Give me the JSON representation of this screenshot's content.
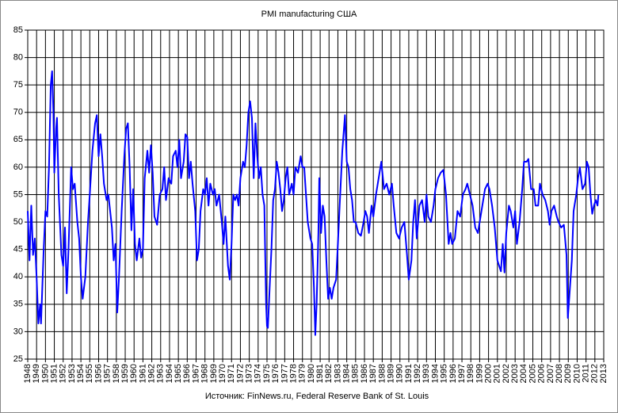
{
  "chart_data": {
    "type": "line",
    "title": "PMI manufacturing  США",
    "source": "Источник:  FinNews.ru,  Federal  Reserve  Bank of St. Louis",
    "color": "#0000ff",
    "grid": true,
    "xlim": [
      1948,
      2013
    ],
    "xticks": [
      1948,
      1949,
      1950,
      1951,
      1952,
      1953,
      1954,
      1955,
      1956,
      1957,
      1958,
      1959,
      1960,
      1961,
      1962,
      1963,
      1964,
      1965,
      1966,
      1967,
      1968,
      1969,
      1970,
      1971,
      1972,
      1973,
      1974,
      1975,
      1976,
      1977,
      1978,
      1979,
      1980,
      1981,
      1982,
      1983,
      1984,
      1985,
      1986,
      1987,
      1988,
      1989,
      1990,
      1991,
      1992,
      1993,
      1994,
      1995,
      1996,
      1997,
      1998,
      1999,
      2000,
      2001,
      2002,
      2003,
      2004,
      2005,
      2006,
      2007,
      2008,
      2009,
      2010,
      2011,
      2012,
      2013
    ],
    "ylim": [
      25,
      85
    ],
    "yticks": [
      25,
      30,
      35,
      40,
      45,
      50,
      55,
      60,
      65,
      70,
      75,
      80,
      85
    ],
    "x": [
      1948.0,
      1948.2,
      1948.4,
      1948.6,
      1948.8,
      1949.0,
      1949.2,
      1949.4,
      1949.5,
      1949.8,
      1950.0,
      1950.2,
      1950.4,
      1950.6,
      1950.75,
      1950.9,
      1951.0,
      1951.2,
      1951.3,
      1951.5,
      1951.8,
      1952.0,
      1952.2,
      1952.4,
      1952.6,
      1952.9,
      1953.1,
      1953.3,
      1953.6,
      1953.8,
      1954.0,
      1954.2,
      1954.5,
      1954.8,
      1955.0,
      1955.3,
      1955.6,
      1955.8,
      1956.0,
      1956.2,
      1956.4,
      1956.6,
      1956.9,
      1957.1,
      1957.3,
      1957.5,
      1957.7,
      1957.9,
      1958.1,
      1958.3,
      1958.6,
      1958.9,
      1959.1,
      1959.3,
      1959.5,
      1959.7,
      1959.9,
      1960.1,
      1960.3,
      1960.6,
      1960.8,
      1961.0,
      1961.2,
      1961.5,
      1961.7,
      1961.9,
      1962.1,
      1962.3,
      1962.6,
      1962.9,
      1963.2,
      1963.4,
      1963.6,
      1963.9,
      1964.2,
      1964.4,
      1964.7,
      1964.9,
      1965.1,
      1965.3,
      1965.6,
      1965.8,
      1966.0,
      1966.2,
      1966.4,
      1966.6,
      1966.9,
      1967.1,
      1967.3,
      1967.5,
      1967.8,
      1968.0,
      1968.2,
      1968.4,
      1968.6,
      1968.9,
      1969.1,
      1969.3,
      1969.6,
      1969.9,
      1970.1,
      1970.3,
      1970.6,
      1970.8,
      1971.0,
      1971.2,
      1971.4,
      1971.6,
      1971.8,
      1972.0,
      1972.3,
      1972.5,
      1972.7,
      1972.9,
      1973.1,
      1973.3,
      1973.5,
      1973.7,
      1973.9,
      1974.1,
      1974.3,
      1974.5,
      1974.7,
      1974.9,
      1975.0,
      1975.1,
      1975.3,
      1975.5,
      1975.7,
      1975.9,
      1976.1,
      1976.3,
      1976.5,
      1976.7,
      1976.9,
      1977.1,
      1977.3,
      1977.5,
      1977.8,
      1978.0,
      1978.2,
      1978.5,
      1978.8,
      1979.0,
      1979.2,
      1979.4,
      1979.6,
      1979.9,
      1980.1,
      1980.3,
      1980.45,
      1980.6,
      1980.8,
      1980.9,
      1981.1,
      1981.3,
      1981.5,
      1981.7,
      1981.9,
      1982.1,
      1982.3,
      1982.5,
      1982.8,
      1983.0,
      1983.2,
      1983.5,
      1983.8,
      1984.0,
      1984.2,
      1984.4,
      1984.6,
      1984.8,
      1985.0,
      1985.3,
      1985.6,
      1985.9,
      1986.1,
      1986.3,
      1986.5,
      1986.8,
      1987.0,
      1987.3,
      1987.6,
      1987.9,
      1988.2,
      1988.5,
      1988.8,
      1989.1,
      1989.3,
      1989.6,
      1989.9,
      1990.2,
      1990.5,
      1990.8,
      1991.0,
      1991.3,
      1991.5,
      1991.7,
      1991.9,
      1992.2,
      1992.5,
      1992.8,
      1993.0,
      1993.2,
      1993.5,
      1993.8,
      1994.0,
      1994.3,
      1994.6,
      1994.9,
      1995.2,
      1995.5,
      1995.7,
      1995.9,
      1996.2,
      1996.5,
      1996.8,
      1997.1,
      1997.4,
      1997.6,
      1997.9,
      1998.2,
      1998.5,
      1998.8,
      1999.0,
      1999.3,
      1999.6,
      1999.9,
      2000.1,
      2000.4,
      2000.7,
      2001.0,
      2001.2,
      2001.4,
      2001.6,
      2001.8,
      2002.0,
      2002.3,
      2002.5,
      2002.8,
      2003.0,
      2003.2,
      2003.5,
      2003.8,
      2004.0,
      2004.3,
      2004.5,
      2004.8,
      2005.1,
      2005.3,
      2005.6,
      2005.8,
      2006.1,
      2006.4,
      2006.7,
      2006.9,
      2007.1,
      2007.4,
      2007.7,
      2007.9,
      2008.2,
      2008.5,
      2008.8,
      2008.95,
      2009.1,
      2009.4,
      2009.6,
      2009.9,
      2010.1,
      2010.3,
      2010.6,
      2010.9,
      2011.1,
      2011.3,
      2011.5,
      2011.7,
      2011.9,
      2012.1,
      2012.3,
      2012.4
    ],
    "values": [
      52,
      43,
      53,
      44,
      47,
      40,
      31.5,
      35,
      31.5,
      45,
      52,
      51,
      60,
      75,
      77.5,
      70,
      59,
      67,
      69,
      55,
      44,
      42,
      49,
      37,
      45,
      60,
      56,
      57,
      50,
      47,
      40,
      36,
      40,
      50,
      55,
      63,
      68,
      69.5,
      62,
      66,
      62,
      57,
      54,
      55,
      52,
      49,
      43,
      46,
      33.5,
      40,
      52,
      62,
      67,
      68,
      60,
      48.5,
      56,
      46,
      43,
      47,
      43.5,
      45,
      58,
      63,
      59,
      64,
      59,
      51,
      49.5,
      55,
      56,
      60,
      54,
      58,
      57,
      62,
      63,
      60,
      65,
      58,
      61,
      66,
      65.5,
      58,
      61,
      57,
      52,
      43,
      45,
      52,
      56,
      55,
      58,
      53,
      57,
      55,
      56,
      53,
      55,
      50,
      46,
      51,
      42,
      39.5,
      46,
      55,
      54,
      55,
      53,
      58,
      61,
      60,
      64,
      70,
      72,
      69,
      58,
      68,
      62,
      58,
      60,
      55,
      53,
      35,
      31,
      30.7,
      38,
      45,
      54,
      56,
      61,
      59,
      56,
      52,
      54,
      58,
      60,
      55,
      57,
      55,
      60,
      59,
      62,
      60,
      60,
      55,
      50,
      47,
      46,
      38,
      29.4,
      35,
      48,
      58,
      48,
      53,
      51,
      43,
      36,
      38,
      36,
      38,
      39.5,
      46,
      53,
      63,
      69.5,
      61,
      60,
      56,
      54,
      50,
      50,
      48,
      47.5,
      50,
      52,
      51,
      48,
      53,
      51,
      55,
      58,
      61,
      56,
      57,
      55,
      57,
      53,
      48,
      47,
      49,
      50,
      44,
      39.5,
      43,
      50,
      54,
      47,
      53,
      54,
      50,
      55,
      51,
      50,
      53,
      56,
      58,
      59,
      59.5,
      55,
      46,
      48,
      46,
      47,
      52,
      51,
      55,
      56,
      57,
      55,
      53,
      49,
      48,
      50,
      53,
      56,
      57,
      56,
      53,
      49,
      43,
      42,
      41,
      46,
      40.8,
      48,
      53,
      52,
      49,
      52,
      46,
      50,
      56,
      61,
      61,
      61.5,
      56,
      56,
      53,
      53,
      57,
      55,
      54,
      52,
      49.5,
      52,
      53,
      51,
      50,
      49,
      49.5,
      44,
      32.5,
      36,
      43,
      52,
      55,
      58,
      60,
      56,
      57,
      61,
      60,
      55,
      51.5,
      53,
      54,
      53,
      55
    ]
  }
}
